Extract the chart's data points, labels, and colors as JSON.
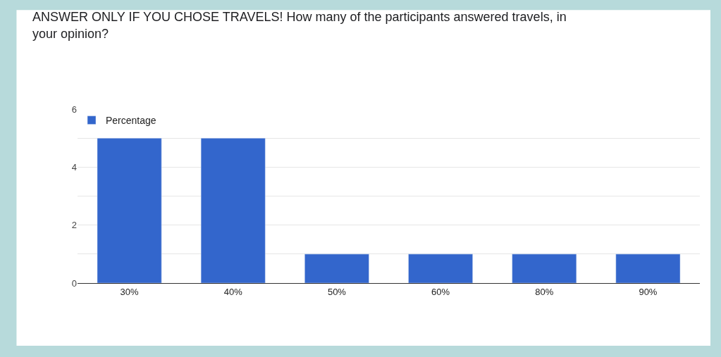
{
  "chart_data": {
    "type": "bar",
    "title": "ANSWER ONLY IF YOU CHOSE TRAVELS! How many of the participants answered travels, in\nyour opinion?",
    "categories": [
      "30%",
      "40%",
      "50%",
      "60%",
      "80%",
      "90%"
    ],
    "series": [
      {
        "name": "Percentage",
        "color": "#3366cc",
        "values": [
          5,
          5,
          1,
          1,
          1,
          1
        ]
      }
    ],
    "ylim": [
      0,
      6
    ],
    "yticks": [
      0,
      {
        "value": 1,
        "label": null
      },
      2,
      {
        "value": 3,
        "label": null
      },
      4,
      {
        "value": 5,
        "label": null
      },
      6
    ],
    "grid": "y",
    "legend": "top left"
  }
}
